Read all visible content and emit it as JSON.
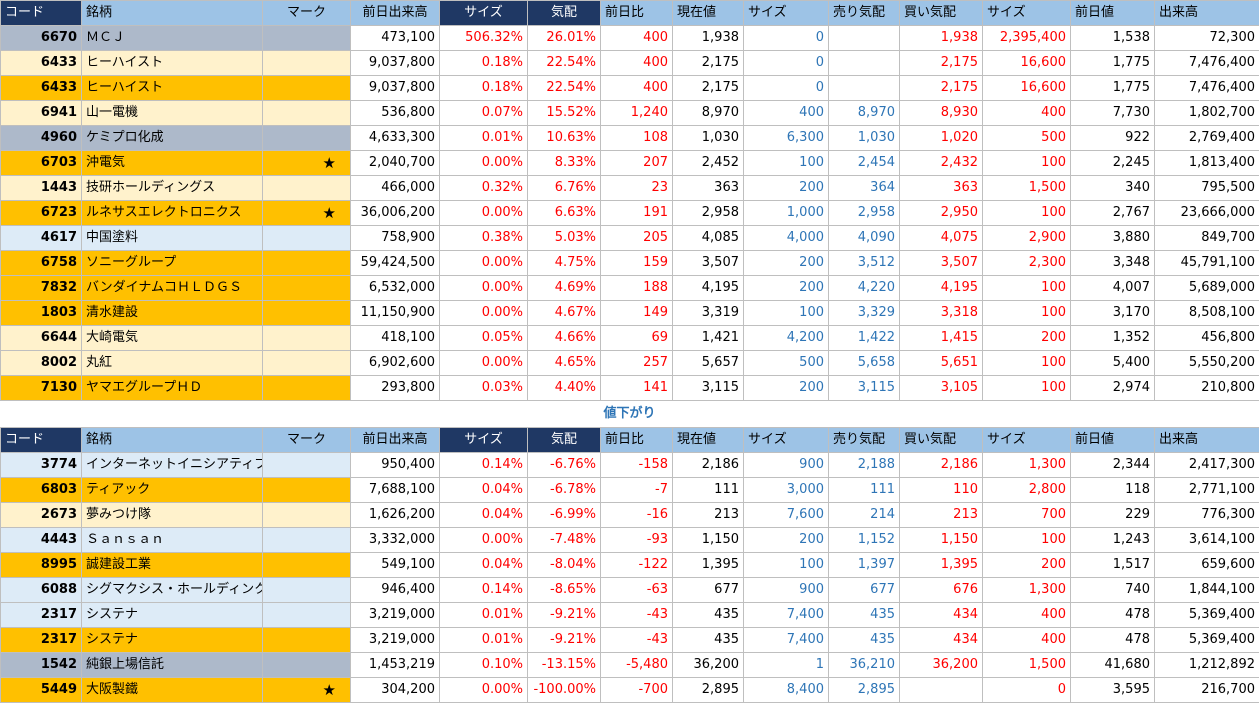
{
  "headers": [
    "コード",
    "銘柄",
    "マーク",
    "前日出来高",
    "サイズ",
    "気配",
    "前日比",
    "現在値",
    "サイズ",
    "売り気配",
    "買い気配",
    "サイズ",
    "前日値",
    "出来高"
  ],
  "section_label": "値下がり",
  "colors": {
    "header_dark": "#1f3864",
    "header_light": "#9dc3e6",
    "red": "#ff0000",
    "blue": "#2e75b6",
    "gray": "#adb9ca",
    "cream": "#fff2cc",
    "orange": "#ffc000",
    "lightblue": "#ddebf7"
  },
  "gainers": [
    {
      "bg": "gray",
      "code": "6670",
      "name": "ＭＣＪ",
      "mark": "",
      "prev_vol": "473,100",
      "size1": "506.32%",
      "quote": "26.01%",
      "change": "400",
      "price": "1,938",
      "size2": "0",
      "ask": "",
      "bid": "1,938",
      "size3": "2,395,400",
      "prev": "1,538",
      "vol": "72,300"
    },
    {
      "bg": "cream",
      "code": "6433",
      "name": "ヒーハイスト",
      "mark": "",
      "prev_vol": "9,037,800",
      "size1": "0.18%",
      "quote": "22.54%",
      "change": "400",
      "price": "2,175",
      "size2": "0",
      "ask": "",
      "bid": "2,175",
      "size3": "16,600",
      "prev": "1,775",
      "vol": "7,476,400"
    },
    {
      "bg": "orange",
      "code": "6433",
      "name": "ヒーハイスト",
      "mark": "",
      "prev_vol": "9,037,800",
      "size1": "0.18%",
      "quote": "22.54%",
      "change": "400",
      "price": "2,175",
      "size2": "0",
      "ask": "",
      "bid": "2,175",
      "size3": "16,600",
      "prev": "1,775",
      "vol": "7,476,400"
    },
    {
      "bg": "cream",
      "code": "6941",
      "name": "山一電機",
      "mark": "",
      "prev_vol": "536,800",
      "size1": "0.07%",
      "quote": "15.52%",
      "change": "1,240",
      "price": "8,970",
      "size2": "400",
      "ask": "8,970",
      "bid": "8,930",
      "size3": "400",
      "prev": "7,730",
      "vol": "1,802,700"
    },
    {
      "bg": "gray",
      "code": "4960",
      "name": "ケミプロ化成",
      "mark": "",
      "prev_vol": "4,633,300",
      "size1": "0.01%",
      "quote": "10.63%",
      "change": "108",
      "price": "1,030",
      "size2": "6,300",
      "ask": "1,030",
      "bid": "1,020",
      "size3": "500",
      "prev": "922",
      "vol": "2,769,400"
    },
    {
      "bg": "orange",
      "code": "6703",
      "name": "沖電気",
      "mark": "★",
      "prev_vol": "2,040,700",
      "size1": "0.00%",
      "quote": "8.33%",
      "change": "207",
      "price": "2,452",
      "size2": "100",
      "ask": "2,454",
      "bid": "2,432",
      "size3": "100",
      "prev": "2,245",
      "vol": "1,813,400"
    },
    {
      "bg": "cream",
      "code": "1443",
      "name": "技研ホールディングス",
      "mark": "",
      "prev_vol": "466,000",
      "size1": "0.32%",
      "quote": "6.76%",
      "change": "23",
      "price": "363",
      "size2": "200",
      "ask": "364",
      "bid": "363",
      "size3": "1,500",
      "prev": "340",
      "vol": "795,500"
    },
    {
      "bg": "orange",
      "code": "6723",
      "name": "ルネサスエレクトロニクス",
      "mark": "★",
      "prev_vol": "36,006,200",
      "size1": "0.00%",
      "quote": "6.63%",
      "change": "191",
      "price": "2,958",
      "size2": "1,000",
      "ask": "2,958",
      "bid": "2,950",
      "size3": "100",
      "prev": "2,767",
      "vol": "23,666,000"
    },
    {
      "bg": "lightblue",
      "code": "4617",
      "name": "中国塗料",
      "mark": "",
      "prev_vol": "758,900",
      "size1": "0.38%",
      "quote": "5.03%",
      "change": "205",
      "price": "4,085",
      "size2": "4,000",
      "ask": "4,090",
      "bid": "4,075",
      "size3": "2,900",
      "prev": "3,880",
      "vol": "849,700"
    },
    {
      "bg": "orange",
      "code": "6758",
      "name": "ソニーグループ",
      "mark": "",
      "prev_vol": "59,424,500",
      "size1": "0.00%",
      "quote": "4.75%",
      "change": "159",
      "price": "3,507",
      "size2": "200",
      "ask": "3,512",
      "bid": "3,507",
      "size3": "2,300",
      "prev": "3,348",
      "vol": "45,791,100"
    },
    {
      "bg": "orange",
      "code": "7832",
      "name": "バンダイナムコＨＬＤＧＳ",
      "mark": "",
      "prev_vol": "6,532,000",
      "size1": "0.00%",
      "quote": "4.69%",
      "change": "188",
      "price": "4,195",
      "size2": "200",
      "ask": "4,220",
      "bid": "4,195",
      "size3": "100",
      "prev": "4,007",
      "vol": "5,689,000"
    },
    {
      "bg": "orange",
      "code": "1803",
      "name": "清水建設",
      "mark": "",
      "prev_vol": "11,150,900",
      "size1": "0.00%",
      "quote": "4.67%",
      "change": "149",
      "price": "3,319",
      "size2": "100",
      "ask": "3,329",
      "bid": "3,318",
      "size3": "100",
      "prev": "3,170",
      "vol": "8,508,100"
    },
    {
      "bg": "cream",
      "code": "6644",
      "name": "大崎電気",
      "mark": "",
      "prev_vol": "418,100",
      "size1": "0.05%",
      "quote": "4.66%",
      "change": "69",
      "price": "1,421",
      "size2": "4,200",
      "ask": "1,422",
      "bid": "1,415",
      "size3": "200",
      "prev": "1,352",
      "vol": "456,800"
    },
    {
      "bg": "cream",
      "code": "8002",
      "name": "丸紅",
      "mark": "",
      "prev_vol": "6,902,600",
      "size1": "0.00%",
      "quote": "4.65%",
      "change": "257",
      "price": "5,657",
      "size2": "500",
      "ask": "5,658",
      "bid": "5,651",
      "size3": "100",
      "prev": "5,400",
      "vol": "5,550,200"
    },
    {
      "bg": "orange",
      "code": "7130",
      "name": "ヤマエグループＨＤ",
      "mark": "",
      "prev_vol": "293,800",
      "size1": "0.03%",
      "quote": "4.40%",
      "change": "141",
      "price": "3,115",
      "size2": "200",
      "ask": "3,115",
      "bid": "3,105",
      "size3": "100",
      "prev": "2,974",
      "vol": "210,800"
    }
  ],
  "losers": [
    {
      "bg": "lightblue",
      "code": "3774",
      "name": "インターネットイニシアティブ",
      "mark": "",
      "prev_vol": "950,400",
      "size1": "0.14%",
      "quote": "-6.76%",
      "change": "-158",
      "price": "2,186",
      "size2": "900",
      "ask": "2,188",
      "bid": "2,186",
      "size3": "1,300",
      "prev": "2,344",
      "vol": "2,417,300"
    },
    {
      "bg": "orange",
      "code": "6803",
      "name": "ティアック",
      "mark": "",
      "prev_vol": "7,688,100",
      "size1": "0.04%",
      "quote": "-6.78%",
      "change": "-7",
      "price": "111",
      "size2": "3,000",
      "ask": "111",
      "bid": "110",
      "size3": "2,800",
      "prev": "118",
      "vol": "2,771,100"
    },
    {
      "bg": "cream",
      "code": "2673",
      "name": "夢みつけ隊",
      "mark": "",
      "prev_vol": "1,626,200",
      "size1": "0.04%",
      "quote": "-6.99%",
      "change": "-16",
      "price": "213",
      "size2": "7,600",
      "ask": "214",
      "bid": "213",
      "size3": "700",
      "prev": "229",
      "vol": "776,300"
    },
    {
      "bg": "lightblue",
      "code": "4443",
      "name": "Ｓａｎｓａｎ",
      "mark": "",
      "prev_vol": "3,332,000",
      "size1": "0.00%",
      "quote": "-7.48%",
      "change": "-93",
      "price": "1,150",
      "size2": "200",
      "ask": "1,152",
      "bid": "1,150",
      "size3": "100",
      "prev": "1,243",
      "vol": "3,614,100"
    },
    {
      "bg": "orange",
      "code": "8995",
      "name": "誠建設工業",
      "mark": "",
      "prev_vol": "549,100",
      "size1": "0.04%",
      "quote": "-8.04%",
      "change": "-122",
      "price": "1,395",
      "size2": "100",
      "ask": "1,397",
      "bid": "1,395",
      "size3": "200",
      "prev": "1,517",
      "vol": "659,600"
    },
    {
      "bg": "lightblue",
      "code": "6088",
      "name": "シグマクシス・ホールディンク",
      "mark": "",
      "prev_vol": "946,400",
      "size1": "0.14%",
      "quote": "-8.65%",
      "change": "-63",
      "price": "677",
      "size2": "900",
      "ask": "677",
      "bid": "676",
      "size3": "1,300",
      "prev": "740",
      "vol": "1,844,100"
    },
    {
      "bg": "lightblue",
      "code": "2317",
      "name": "システナ",
      "mark": "",
      "prev_vol": "3,219,000",
      "size1": "0.01%",
      "quote": "-9.21%",
      "change": "-43",
      "price": "435",
      "size2": "7,400",
      "ask": "435",
      "bid": "434",
      "size3": "400",
      "prev": "478",
      "vol": "5,369,400"
    },
    {
      "bg": "orange",
      "code": "2317",
      "name": "システナ",
      "mark": "",
      "prev_vol": "3,219,000",
      "size1": "0.01%",
      "quote": "-9.21%",
      "change": "-43",
      "price": "435",
      "size2": "7,400",
      "ask": "435",
      "bid": "434",
      "size3": "400",
      "prev": "478",
      "vol": "5,369,400"
    },
    {
      "bg": "gray",
      "code": "1542",
      "name": "純銀上場信託",
      "mark": "",
      "prev_vol": "1,453,219",
      "size1": "0.10%",
      "quote": "-13.15%",
      "change": "-5,480",
      "price": "36,200",
      "size2": "1",
      "ask": "36,210",
      "bid": "36,200",
      "size3": "1,500",
      "prev": "41,680",
      "vol": "1,212,892"
    },
    {
      "bg": "orange",
      "code": "5449",
      "name": "大阪製鐵",
      "mark": "★",
      "prev_vol": "304,200",
      "size1": "0.00%",
      "quote": "-100.00%",
      "change": "-700",
      "price": "2,895",
      "size2": "8,400",
      "ask": "2,895",
      "bid": "",
      "size3": "0",
      "prev": "3,595",
      "vol": "216,700"
    }
  ]
}
